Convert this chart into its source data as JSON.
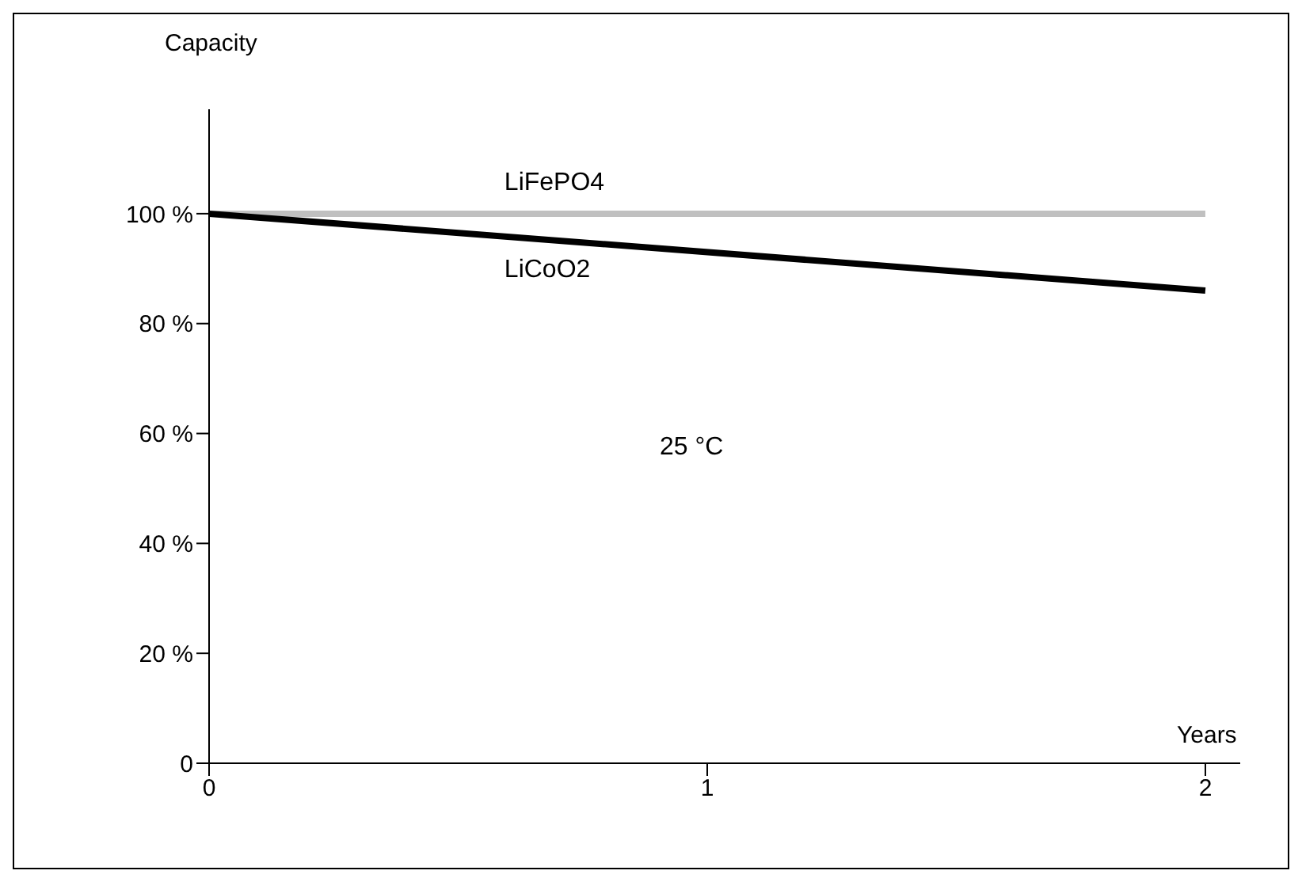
{
  "chart_data": {
    "type": "line",
    "xlabel": "Years",
    "ylabel": "Capacity",
    "x": [
      0,
      2
    ],
    "series": [
      {
        "name": "LiFePO4",
        "color": "#c0c0c0",
        "values": [
          100,
          100
        ]
      },
      {
        "name": "LiCoO2",
        "color": "#000000",
        "values": [
          100,
          86
        ]
      }
    ],
    "xlim": [
      0,
      2.07
    ],
    "xticks": [
      0,
      1,
      2
    ],
    "ylim": [
      0,
      119
    ],
    "yticks": [
      0,
      {
        "value": 20,
        "label": "20 %"
      },
      {
        "value": 40,
        "label": "40 %"
      },
      {
        "value": 60,
        "label": "60 %"
      },
      {
        "value": 80,
        "label": "80 %"
      },
      {
        "value": 100,
        "label": "100 %"
      }
    ],
    "annotations": [
      "25 °C"
    ],
    "grid": false,
    "legend": false,
    "marker": "none",
    "line_style": "solid"
  }
}
